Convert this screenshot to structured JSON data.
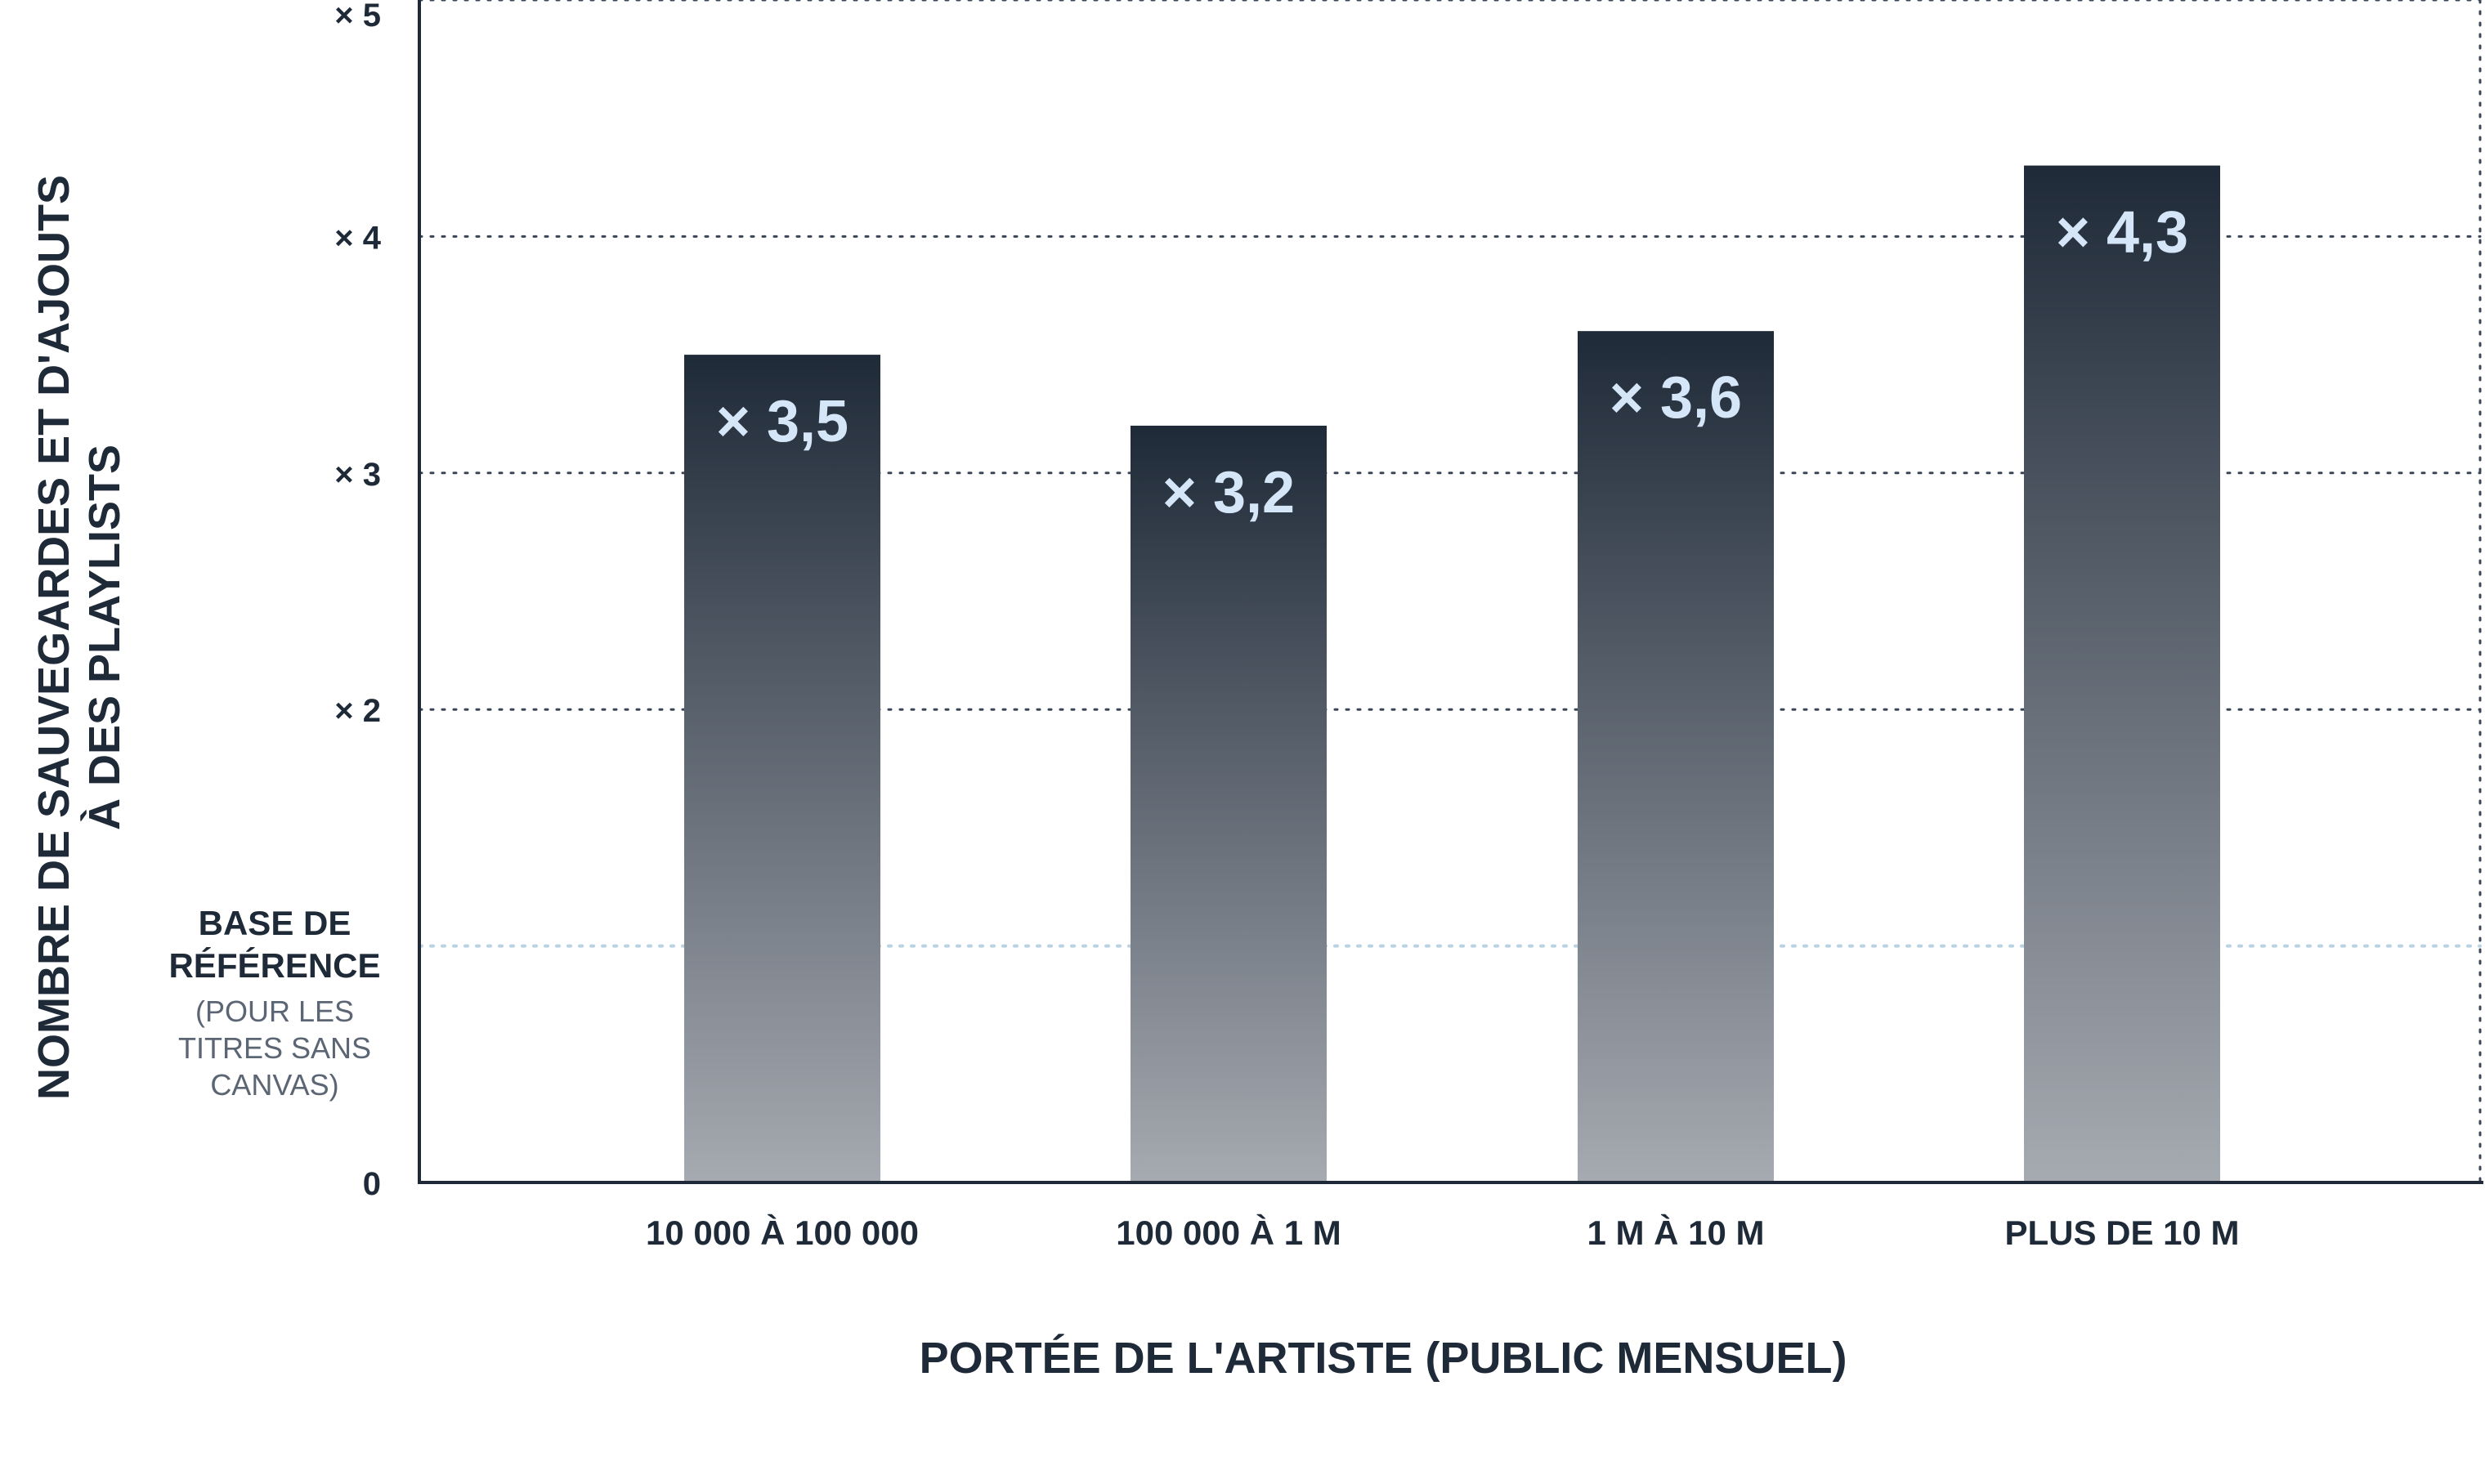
{
  "chart_data": {
    "type": "bar",
    "categories": [
      "10 000 À 100 000",
      "100 000 À 1 M",
      "1 M À 10 M",
      "PLUS DE 10 M"
    ],
    "values": [
      3.5,
      3.2,
      3.6,
      4.3
    ],
    "data_labels": [
      "× 3,5",
      "× 3,2",
      "× 3,6",
      "× 4,3"
    ],
    "xlabel": "PORTÉE DE L'ARTISTE (PUBLIC MENSUEL)",
    "ylabel_lines": [
      "NOMBRE DE SAUVEGARDES ET D'AJOUTS",
      "À DES PLAYLISTS"
    ],
    "ylim": [
      0,
      5
    ],
    "yticks": [
      {
        "value": 0,
        "label": "0"
      },
      {
        "value": 2,
        "label": "× 2"
      },
      {
        "value": 3,
        "label": "× 3"
      },
      {
        "value": 4,
        "label": "× 4"
      },
      {
        "value": 5,
        "label": "× 5"
      }
    ],
    "baseline": {
      "value": 1,
      "title_lines": [
        "BASE DE",
        "RÉFÉRENCE"
      ],
      "subtitle_lines": [
        "(POUR LES",
        "TITRES SANS",
        "CANVAS)"
      ]
    },
    "grid": true,
    "grid_style": "dotted",
    "legend": "none"
  },
  "colors": {
    "text": "#1f2a38",
    "axis": "#1f2a38",
    "grid": "#3a4656",
    "baseline": "#b9d3e3",
    "bar_top": "#1f2a38",
    "bar_bottom": "#a6aab1",
    "value_label": "#d4e6f7",
    "baseline_subtitle": "#5b6573"
  }
}
